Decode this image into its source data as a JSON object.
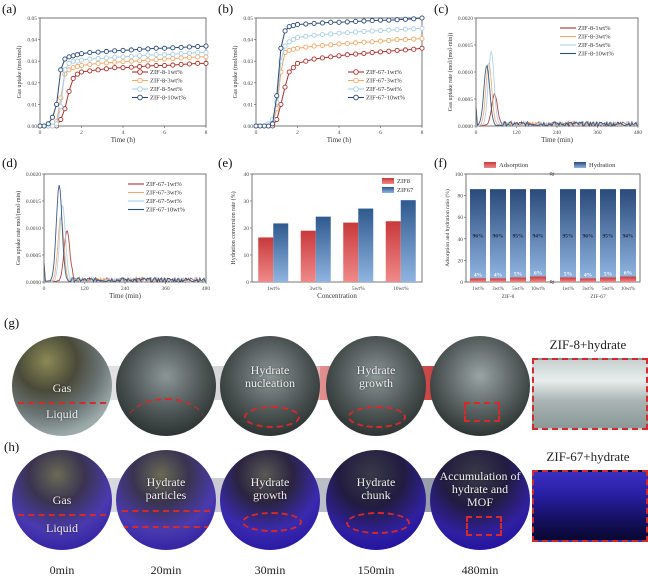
{
  "panel_labels": {
    "a": "(a)",
    "b": "(b)",
    "c": "(c)",
    "d": "(d)",
    "e": "(e)",
    "f": "(f)",
    "g": "(g)",
    "h": "(h)"
  },
  "chart_data": [
    {
      "id": "a",
      "type": "line",
      "xlabel": "Time (h)",
      "ylabel": "Gas uptake (mol/mol)",
      "xlim": [
        0,
        8
      ],
      "ylim": [
        0,
        0.05
      ],
      "xticks": [
        "0",
        "2",
        "4",
        "6",
        "8"
      ],
      "yticks": [
        "0.00",
        "0.01",
        "0.02",
        "0.03",
        "0.04",
        "0.05"
      ],
      "x": [
        0,
        0.2,
        0.4,
        0.6,
        0.8,
        1.0,
        1.2,
        1.4,
        1.6,
        1.8,
        2.0,
        2.4,
        2.8,
        3.2,
        3.6,
        4.0,
        4.4,
        4.8,
        5.2,
        5.6,
        6.0,
        6.4,
        6.8,
        7.2,
        7.6,
        8.0
      ],
      "series": [
        {
          "name": "ZIF-8-1wt%",
          "color": "#a8322d",
          "values": [
            0,
            0,
            0,
            0,
            0,
            0.003,
            0.008,
            0.016,
            0.022,
            0.024,
            0.025,
            0.0255,
            0.026,
            0.0265,
            0.027,
            0.027,
            0.0272,
            0.0275,
            0.0278,
            0.028,
            0.028,
            0.0282,
            0.0285,
            0.0287,
            0.029,
            0.029
          ]
        },
        {
          "name": "ZIF-8-3wt%",
          "color": "#f0a868",
          "values": [
            0,
            0,
            0,
            0,
            0.002,
            0.013,
            0.024,
            0.026,
            0.027,
            0.0275,
            0.028,
            0.0285,
            0.029,
            0.0292,
            0.0295,
            0.0298,
            0.03,
            0.0302,
            0.0305,
            0.0307,
            0.031,
            0.0312,
            0.0315,
            0.0317,
            0.032,
            0.032
          ]
        },
        {
          "name": "ZIF-8-5wt%",
          "color": "#a9cde8",
          "values": [
            0,
            0,
            0,
            0,
            0.001,
            0.009,
            0.026,
            0.029,
            0.03,
            0.03,
            0.0305,
            0.031,
            0.0312,
            0.0315,
            0.0318,
            0.032,
            0.0322,
            0.0325,
            0.0328,
            0.033,
            0.033,
            0.0332,
            0.0335,
            0.0337,
            0.034,
            0.034
          ]
        },
        {
          "name": "ZIF-8-10wt%",
          "color": "#2a4a78",
          "values": [
            0,
            0,
            0.001,
            0.004,
            0.01,
            0.026,
            0.031,
            0.032,
            0.0325,
            0.033,
            0.0335,
            0.034,
            0.0342,
            0.0345,
            0.0348,
            0.035,
            0.0352,
            0.0355,
            0.0357,
            0.036,
            0.036,
            0.0362,
            0.0364,
            0.0366,
            0.0368,
            0.037
          ]
        }
      ],
      "legend_position": "center-right"
    },
    {
      "id": "b",
      "type": "line",
      "xlabel": "Time (h)",
      "ylabel": "Gas uptake (mol/mol)",
      "xlim": [
        0,
        8
      ],
      "ylim": [
        0,
        0.05
      ],
      "xticks": [
        "0",
        "2",
        "4",
        "6",
        "8"
      ],
      "yticks": [
        "0.00",
        "0.01",
        "0.02",
        "0.03",
        "0.04",
        "0.05"
      ],
      "x": [
        0,
        0.2,
        0.4,
        0.6,
        0.8,
        1.0,
        1.2,
        1.4,
        1.6,
        1.8,
        2.0,
        2.4,
        2.8,
        3.2,
        3.6,
        4.0,
        4.4,
        4.8,
        5.2,
        5.6,
        6.0,
        6.4,
        6.8,
        7.2,
        7.6,
        8.0
      ],
      "series": [
        {
          "name": "ZIF-67-1wt%",
          "color": "#a8322d",
          "values": [
            0,
            0,
            0,
            0,
            0,
            0.003,
            0.01,
            0.018,
            0.025,
            0.027,
            0.029,
            0.03,
            0.031,
            0.0315,
            0.032,
            0.0325,
            0.033,
            0.0333,
            0.0336,
            0.034,
            0.0343,
            0.0346,
            0.035,
            0.0352,
            0.0355,
            0.036
          ]
        },
        {
          "name": "ZIF-67-3wt%",
          "color": "#f0a868",
          "values": [
            0,
            0,
            0,
            0,
            0.001,
            0.008,
            0.025,
            0.034,
            0.035,
            0.0355,
            0.036,
            0.0365,
            0.037,
            0.0373,
            0.0376,
            0.038,
            0.0382,
            0.0385,
            0.0388,
            0.039,
            0.0393,
            0.0396,
            0.04,
            0.04,
            0.0402,
            0.0405
          ]
        },
        {
          "name": "ZIF-67-5wt%",
          "color": "#a9cde8",
          "values": [
            0,
            0,
            0,
            0.001,
            0.003,
            0.011,
            0.03,
            0.037,
            0.039,
            0.04,
            0.041,
            0.0415,
            0.042,
            0.0423,
            0.0426,
            0.043,
            0.0432,
            0.0435,
            0.0438,
            0.044,
            0.0442,
            0.0444,
            0.0446,
            0.0448,
            0.045,
            0.0452
          ]
        },
        {
          "name": "ZIF-67-10wt%",
          "color": "#2a4a78",
          "values": [
            0,
            0,
            0,
            0,
            0.001,
            0.014,
            0.036,
            0.044,
            0.046,
            0.0465,
            0.047,
            0.0472,
            0.0475,
            0.0477,
            0.048,
            0.048,
            0.0482,
            0.0484,
            0.0486,
            0.0488,
            0.049,
            0.049,
            0.0492,
            0.0494,
            0.0496,
            0.05
          ]
        }
      ],
      "legend_position": "center-right"
    },
    {
      "id": "c",
      "type": "line",
      "xlabel": "Time (min)",
      "ylabel": "Gas uptake rate (mol/(mol·min))",
      "xlim": [
        0,
        480
      ],
      "ylim": [
        0,
        0.002
      ],
      "xticks": [
        "0",
        "120",
        "240",
        "360",
        "480"
      ],
      "yticks": [
        "0.0000",
        "0.0005",
        "0.0010",
        "0.0015",
        "0.0020"
      ],
      "series": [
        {
          "name": "ZIF-8-1wt%",
          "color": "#a8322d",
          "peak_x": 55,
          "peak_y": 0.00058
        },
        {
          "name": "ZIF-8-3wt%",
          "color": "#f0a868",
          "peak_x": 38,
          "peak_y": 0.00115
        },
        {
          "name": "ZIF-8-5wt%",
          "color": "#a9cde8",
          "peak_x": 45,
          "peak_y": 0.00138
        },
        {
          "name": "ZIF-8-10wt%",
          "color": "#2a4a78",
          "peak_x": 32,
          "peak_y": 0.00112
        }
      ],
      "legend_position": "top-right"
    },
    {
      "id": "d",
      "type": "line",
      "xlabel": "Time (min)",
      "ylabel": "Gas uptake rate mol/(mol·min)",
      "xlim": [
        0,
        480
      ],
      "ylim": [
        0,
        0.002
      ],
      "xticks": [
        "0",
        "120",
        "240",
        "360",
        "480"
      ],
      "yticks": [
        "0.0000",
        "0.0005",
        "0.0010",
        "0.0015",
        "0.0020"
      ],
      "series": [
        {
          "name": "ZIF-67-1wt%",
          "color": "#a8322d",
          "peak_x": 68,
          "peak_y": 0.00095
        },
        {
          "name": "ZIF-67-3wt%",
          "color": "#f0a868",
          "peak_x": 50,
          "peak_y": 0.0012
        },
        {
          "name": "ZIF-67-5wt%",
          "color": "#a9cde8",
          "peak_x": 55,
          "peak_y": 0.0014
        },
        {
          "name": "ZIF-67-10wt%",
          "color": "#2a4a78",
          "peak_x": 45,
          "peak_y": 0.00178
        }
      ],
      "legend_position": "top-right"
    },
    {
      "id": "e",
      "type": "bar",
      "xlabel": "Concentration",
      "ylabel": "Hydration conversion rate (%)",
      "ylim": [
        0,
        40
      ],
      "yticks": [
        "0",
        "10",
        "20",
        "30",
        "40"
      ],
      "categories": [
        "1wt%",
        "3wt%",
        "5wt%",
        "10wt%"
      ],
      "series": [
        {
          "name": "ZIF8",
          "color": "#c8393a",
          "values": [
            16.5,
            19,
            22,
            22.5
          ]
        },
        {
          "name": "ZIF67",
          "color": "#2f5a8e",
          "values": [
            21.7,
            24.2,
            27.2,
            30.3
          ]
        }
      ],
      "legend_position": "top-right"
    },
    {
      "id": "f",
      "type": "bar",
      "stacked": true,
      "ylabel": "Adsorption and hydration ratio (%)",
      "ylim": [
        0,
        100
      ],
      "yticks": [
        "0",
        "20",
        "40",
        "60",
        "80",
        "100"
      ],
      "groups": [
        {
          "name": "ZIF-8",
          "categories": [
            "1wt%",
            "3wt%",
            "5wt%",
            "10wt%"
          ],
          "adsorption": [
            4,
            4,
            5,
            6
          ],
          "hydration": [
            96,
            96,
            95,
            94
          ]
        },
        {
          "name": "ZIF-67",
          "categories": [
            "1wt%",
            "3wt%",
            "5wt%",
            "10wt%"
          ],
          "adsorption": [
            5,
            4,
            5,
            6
          ],
          "hydration": [
            95,
            96,
            95,
            94
          ]
        }
      ],
      "series_names": {
        "adsorption": "Adsorption",
        "hydration": "Hydration"
      },
      "colors": {
        "adsorption": "#c8393a",
        "hydration": "#2f5a8e"
      },
      "axis_break": "≈",
      "legend_position": "top"
    }
  ],
  "photos": {
    "g": {
      "frames": [
        {
          "caption": "Gas",
          "sub": "Liquid"
        },
        {
          "caption": "",
          "sub": ""
        },
        {
          "caption": "Hydrate nucleation",
          "sub": ""
        },
        {
          "caption": "Hydrate growth",
          "sub": ""
        },
        {
          "caption": "",
          "sub": ""
        }
      ],
      "zoom_title": "ZIF-8+hydrate"
    },
    "h": {
      "frames": [
        {
          "caption": "Gas",
          "sub": "Liquid"
        },
        {
          "caption": "Hydrate particles",
          "sub": ""
        },
        {
          "caption": "Hydrate growth",
          "sub": ""
        },
        {
          "caption": "Hydrate chunk",
          "sub": ""
        },
        {
          "caption": "Accumulation of hydrate and MOF",
          "sub": ""
        }
      ],
      "zoom_title": "ZIF-67+hydrate"
    },
    "times": [
      "0min",
      "20min",
      "30min",
      "150min",
      "480min"
    ]
  }
}
